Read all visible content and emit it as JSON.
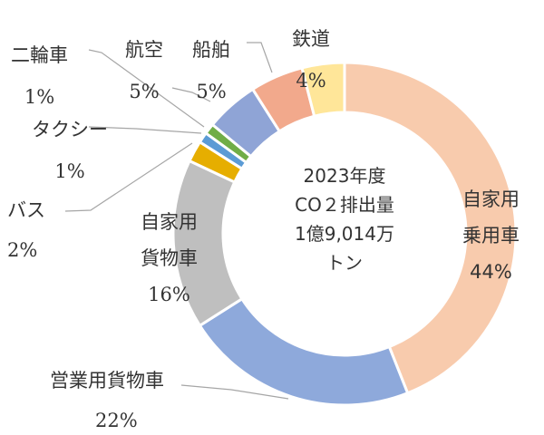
{
  "chart_data": {
    "type": "pie",
    "donut": true,
    "center_text": [
      "2023年度",
      "CO２排出量",
      "1億9,014万",
      "トン"
    ],
    "slices": [
      {
        "name": "自家用乗用車",
        "label_lines": [
          "自家用",
          "乗用車"
        ],
        "value": 44,
        "pct": "44%",
        "color": "#F8CBAD"
      },
      {
        "name": "営業用貨物車",
        "label_lines": [
          "営業用貨物車"
        ],
        "value": 22,
        "pct": "22%",
        "color": "#8EA9DB"
      },
      {
        "name": "自家用貨物車",
        "label_lines": [
          "自家用",
          "貨物車"
        ],
        "value": 16,
        "pct": "16%",
        "color": "#BFBFBF"
      },
      {
        "name": "バス",
        "label_lines": [
          "バス"
        ],
        "value": 2,
        "pct": "2%",
        "color": "#E6AE00"
      },
      {
        "name": "タクシー",
        "label_lines": [
          "タクシー"
        ],
        "value": 1,
        "pct": "1%",
        "color": "#5B9BD5"
      },
      {
        "name": "二輪車",
        "label_lines": [
          "二輪車"
        ],
        "value": 1,
        "pct": "1%",
        "color": "#70AD47"
      },
      {
        "name": "航空",
        "label_lines": [
          "航空"
        ],
        "value": 5,
        "pct": "5%",
        "color": "#8FA4D6"
      },
      {
        "name": "船舶",
        "label_lines": [
          "船舶"
        ],
        "value": 5,
        "pct": "5%",
        "color": "#F2A98C"
      },
      {
        "name": "鉄道",
        "label_lines": [
          "鉄道"
        ],
        "value": 4,
        "pct": "4%",
        "color": "#FFE699"
      }
    ]
  }
}
